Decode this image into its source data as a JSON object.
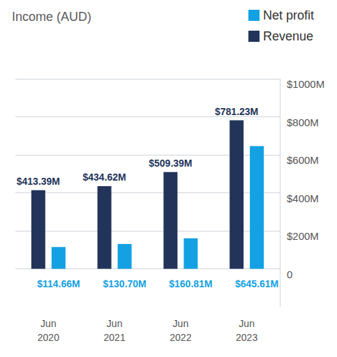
{
  "chart_data": {
    "type": "bar",
    "title": "Income (AUD)",
    "categories": [
      "Jun\n2020",
      "Jun\n2021",
      "Jun\n2022",
      "Jun\n2023"
    ],
    "series": [
      {
        "name": "Revenue",
        "color": "#223459",
        "values": [
          413.39,
          434.62,
          509.39,
          781.23
        ],
        "value_labels": [
          "$413.39M",
          "$434.62M",
          "$509.39M",
          "$781.23M"
        ]
      },
      {
        "name": "Net profit",
        "color": "#13a1e3",
        "values": [
          114.66,
          130.7,
          160.81,
          645.61
        ],
        "value_labels": [
          "$114.66M",
          "$130.70M",
          "$160.81M",
          "$645.61M"
        ]
      }
    ],
    "ylim": [
      -200,
      1000
    ],
    "yticks": [
      0,
      {
        "value": 200,
        "label": "$200M"
      },
      {
        "value": 400,
        "label": "$400M"
      },
      {
        "value": 600,
        "label": "$600M"
      },
      {
        "value": 800,
        "label": "$800M"
      },
      {
        "value": 1000,
        "label": "$1000M"
      }
    ],
    "grid": true,
    "legend": "top-right",
    "data_labels": true
  }
}
